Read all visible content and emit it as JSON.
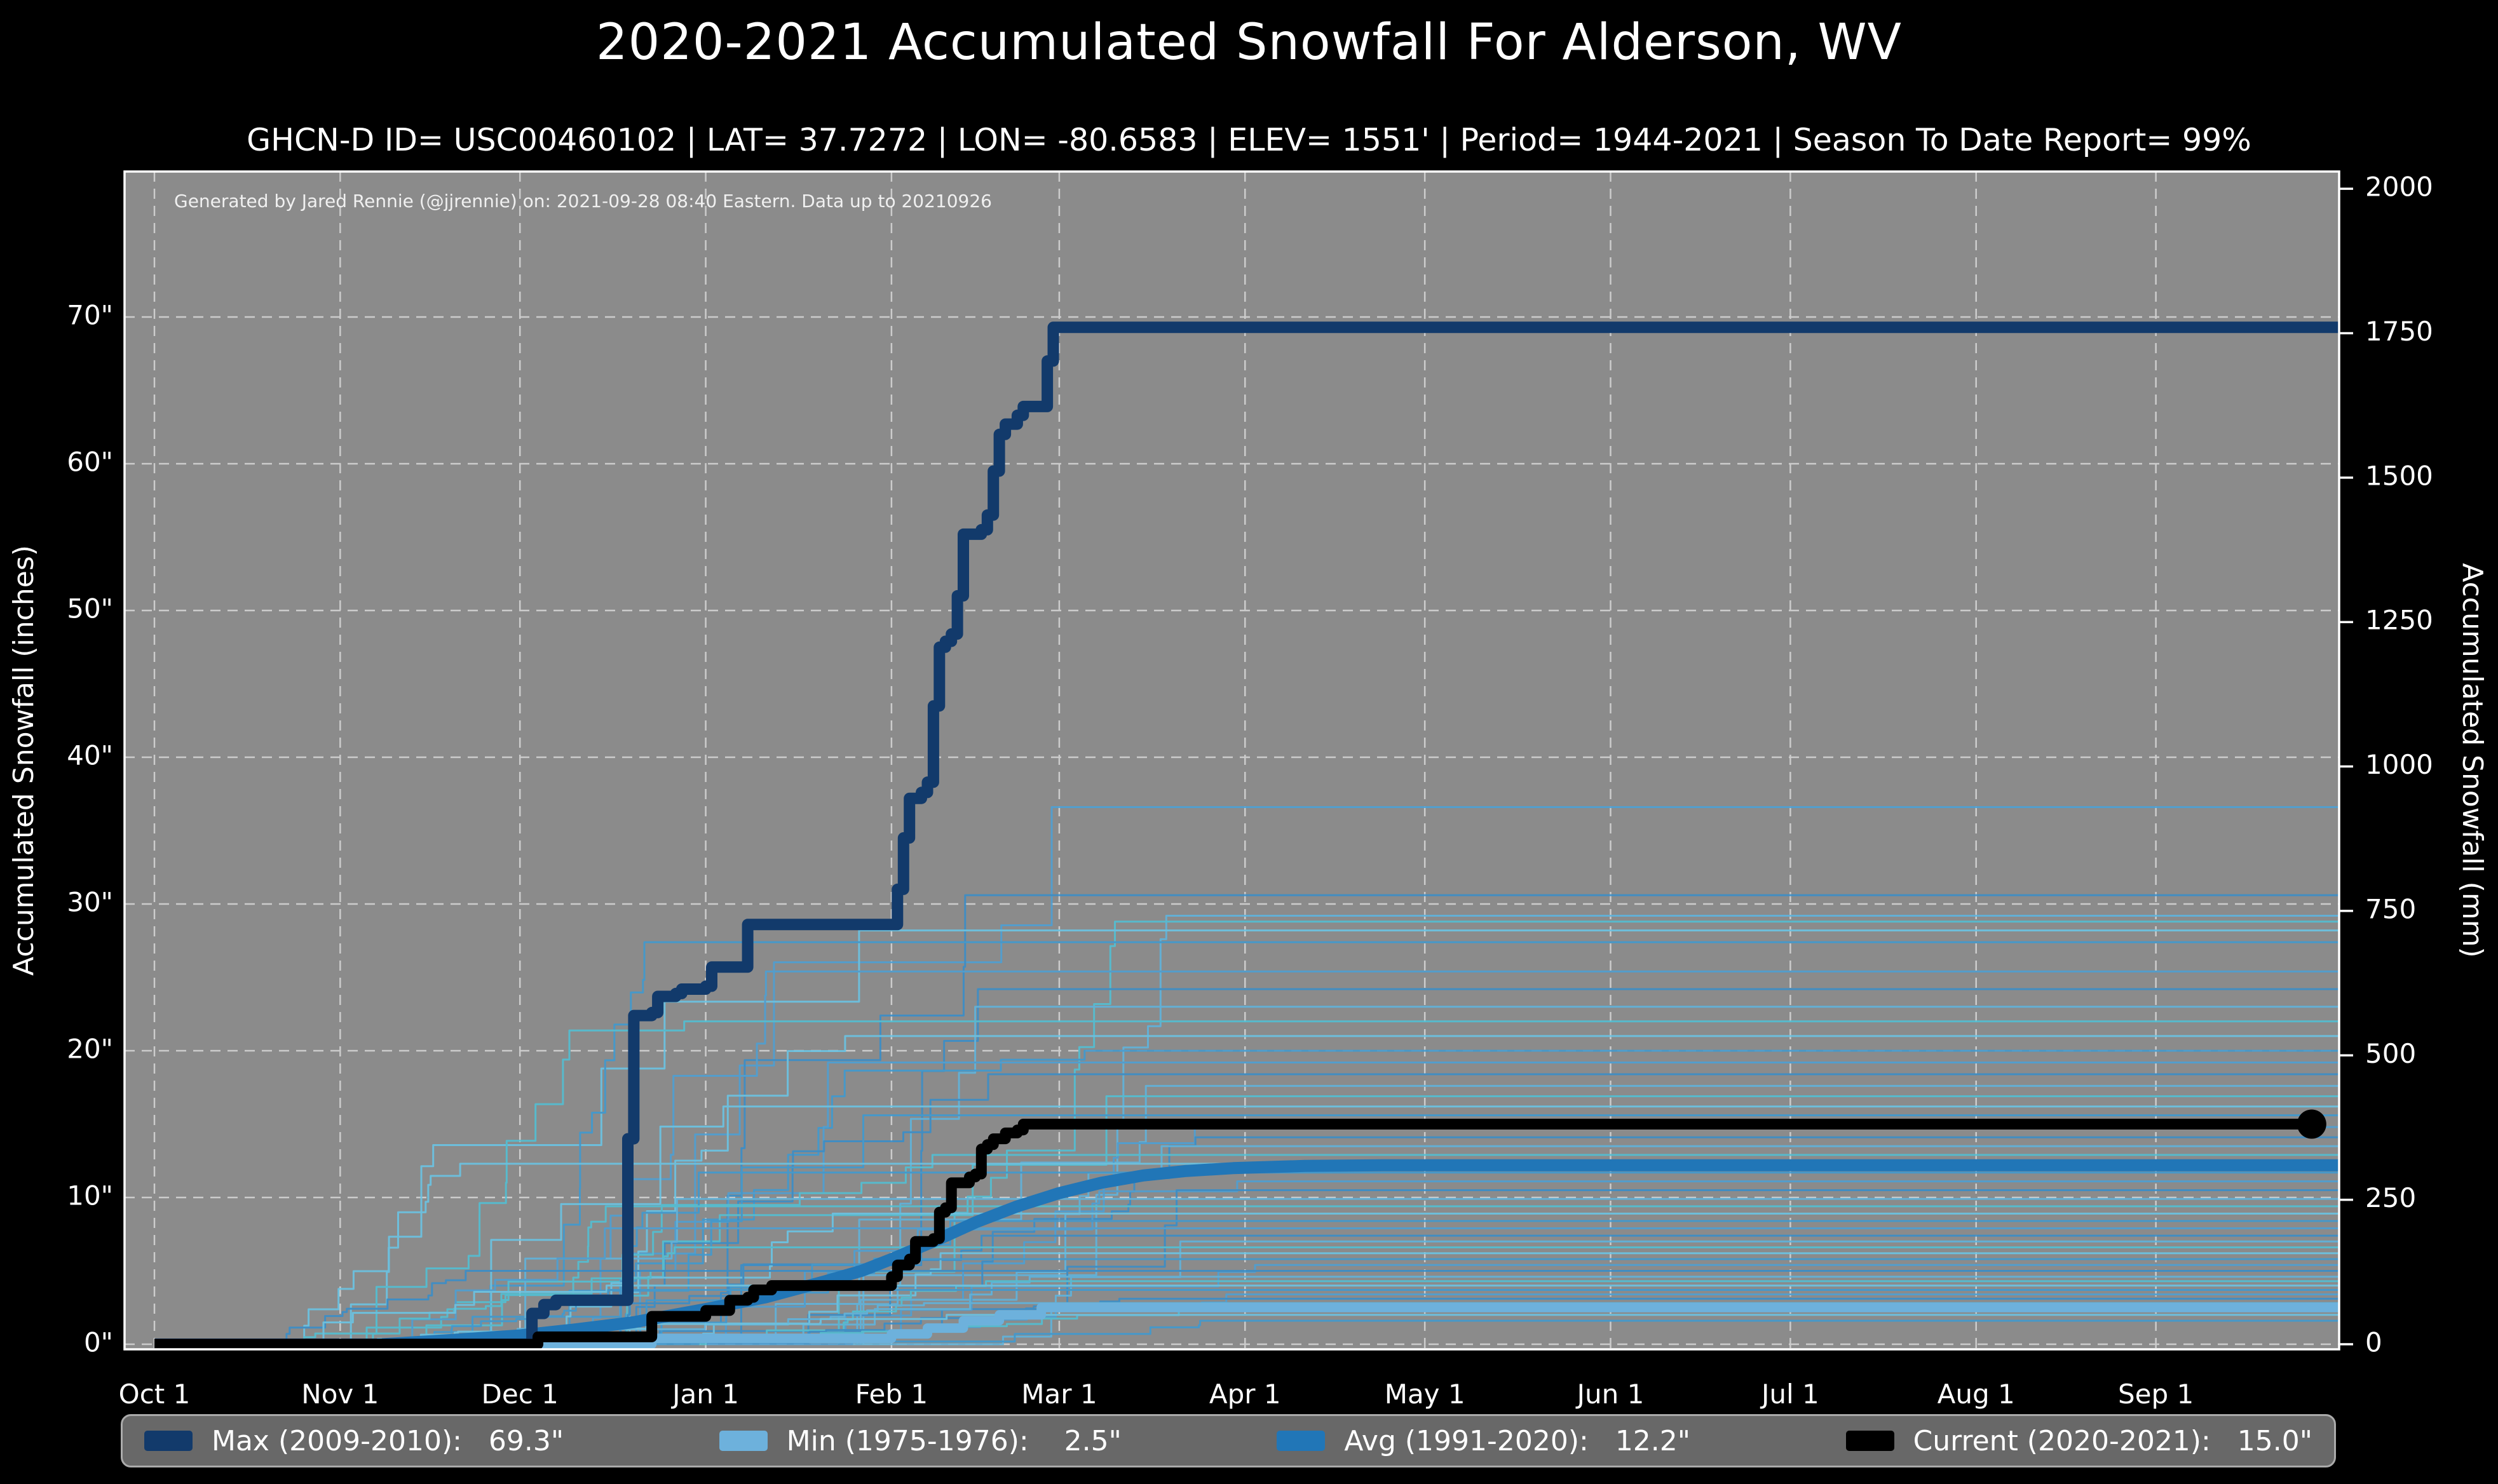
{
  "chart_data": {
    "type": "line",
    "title": "2020-2021 Accumulated Snowfall For Alderson, WV",
    "subtitle": "GHCN-D ID= USC00460102 | LAT= 37.7272 | LON= -80.6583 | ELEV= 1551' | Period= 1944-2021 | Season To Date Report= 99%",
    "annotation": "Generated by Jared Rennie (@jjrennie) on: 2021-09-28 08:40 Eastern. Data up to 20210926",
    "colors": {
      "figure_background": "#000000",
      "plot_background": "#8b8b8b",
      "gridline": "#cccccc",
      "spine": "#ffffff",
      "text": "#ffffff"
    },
    "x_axis": {
      "ticks": [
        {
          "label": "Oct 1",
          "day": 0
        },
        {
          "label": "Nov 1",
          "day": 31
        },
        {
          "label": "Dec 1",
          "day": 61
        },
        {
          "label": "Jan 1",
          "day": 92
        },
        {
          "label": "Feb 1",
          "day": 123
        },
        {
          "label": "Mar 1",
          "day": 151
        },
        {
          "label": "Apr 1",
          "day": 182
        },
        {
          "label": "May 1",
          "day": 212
        },
        {
          "label": "Jun 1",
          "day": 243
        },
        {
          "label": "Jul 1",
          "day": 273
        },
        {
          "label": "Aug 1",
          "day": 304
        },
        {
          "label": "Sep 1",
          "day": 334
        }
      ]
    },
    "y_left": {
      "label": "Accumulated Snowfall (inches)",
      "ticks": [
        {
          "v": 0,
          "label": "0\""
        },
        {
          "v": 10,
          "label": "10\""
        },
        {
          "v": 20,
          "label": "20\""
        },
        {
          "v": 30,
          "label": "30\""
        },
        {
          "v": 40,
          "label": "40\""
        },
        {
          "v": 50,
          "label": "50\""
        },
        {
          "v": 60,
          "label": "60\""
        },
        {
          "v": 70,
          "label": "70\""
        }
      ],
      "range": [
        0,
        80
      ]
    },
    "y_right": {
      "label": "Accumulated Snowfall (mm)",
      "ticks": [
        {
          "mm": 0,
          "label": "0"
        },
        {
          "mm": 250,
          "label": "250"
        },
        {
          "mm": 500,
          "label": "500"
        },
        {
          "mm": 750,
          "label": "750"
        },
        {
          "mm": 1000,
          "label": "1000"
        },
        {
          "mm": 1250,
          "label": "1250"
        },
        {
          "mm": 1500,
          "label": "1500"
        },
        {
          "mm": 1750,
          "label": "1750"
        },
        {
          "mm": 2000,
          "label": "2000"
        }
      ]
    },
    "series": [
      {
        "id": "min",
        "name": "Min (1975-1976)",
        "final_value": 2.5,
        "color": "#6db1dc",
        "width": 15,
        "mode": "step",
        "end_marker": false,
        "points": [
          [
            0,
            0
          ],
          [
            82,
            0
          ],
          [
            83,
            0.4
          ],
          [
            122,
            0.4
          ],
          [
            123,
            0.7
          ],
          [
            128,
            0.7
          ],
          [
            129,
            1.1
          ],
          [
            134,
            1.1
          ],
          [
            135,
            1.6
          ],
          [
            140,
            1.6
          ],
          [
            141,
            2.0
          ],
          [
            147,
            2.0
          ],
          [
            148,
            2.5
          ],
          [
            365,
            2.5
          ]
        ]
      },
      {
        "id": "avg",
        "name": "Avg (1991-2020)",
        "final_value": 12.2,
        "color": "#2176b7",
        "width": 19,
        "mode": "linear",
        "end_marker": false,
        "points": [
          [
            38,
            0
          ],
          [
            50,
            0.3
          ],
          [
            61,
            0.6
          ],
          [
            70,
            1.0
          ],
          [
            80,
            1.5
          ],
          [
            92,
            2.4
          ],
          [
            102,
            3.2
          ],
          [
            112,
            4.3
          ],
          [
            118,
            5.0
          ],
          [
            123,
            5.8
          ],
          [
            130,
            7.0
          ],
          [
            137,
            8.3
          ],
          [
            144,
            9.4
          ],
          [
            151,
            10.3
          ],
          [
            158,
            11.0
          ],
          [
            165,
            11.5
          ],
          [
            172,
            11.8
          ],
          [
            180,
            12.0
          ],
          [
            192,
            12.15
          ],
          [
            205,
            12.2
          ],
          [
            365,
            12.2
          ]
        ]
      },
      {
        "id": "max",
        "name": "Max (2009-2010)",
        "final_value": 69.3,
        "color": "#123a6b",
        "width": 18,
        "mode": "step",
        "end_marker": false,
        "points": [
          [
            0,
            0
          ],
          [
            62,
            0
          ],
          [
            63,
            2.1
          ],
          [
            65,
            2.7
          ],
          [
            67,
            3.0
          ],
          [
            78,
            3.0
          ],
          [
            79,
            14.0
          ],
          [
            80,
            22.4
          ],
          [
            83,
            22.6
          ],
          [
            84,
            23.7
          ],
          [
            87,
            23.9
          ],
          [
            88,
            24.2
          ],
          [
            92,
            24.4
          ],
          [
            93,
            25.7
          ],
          [
            98,
            25.7
          ],
          [
            99,
            28.6
          ],
          [
            122,
            28.6
          ],
          [
            124,
            31.0
          ],
          [
            125,
            34.5
          ],
          [
            126,
            37.2
          ],
          [
            128,
            37.6
          ],
          [
            129,
            38.3
          ],
          [
            130,
            43.5
          ],
          [
            131,
            47.5
          ],
          [
            132,
            47.9
          ],
          [
            133,
            48.4
          ],
          [
            134,
            51.0
          ],
          [
            135,
            55.2
          ],
          [
            138,
            55.5
          ],
          [
            139,
            56.5
          ],
          [
            140,
            59.5
          ],
          [
            141,
            62.0
          ],
          [
            142,
            62.7
          ],
          [
            144,
            63.3
          ],
          [
            145,
            63.9
          ],
          [
            148,
            63.9
          ],
          [
            149,
            67.0
          ],
          [
            150,
            69.3
          ],
          [
            365,
            69.3
          ]
        ]
      },
      {
        "id": "current",
        "name": "Current (2020-2021)",
        "final_value": 15.0,
        "color": "#000000",
        "width": 17,
        "mode": "step",
        "end_marker": true,
        "end_marker_day": 360,
        "end_marker_radius": 23,
        "points": [
          [
            0,
            0
          ],
          [
            63,
            0
          ],
          [
            64,
            0.5
          ],
          [
            82,
            0.5
          ],
          [
            83,
            1.9
          ],
          [
            91,
            1.9
          ],
          [
            92,
            2.3
          ],
          [
            95,
            2.3
          ],
          [
            96,
            3.0
          ],
          [
            99,
            3.2
          ],
          [
            100,
            3.7
          ],
          [
            103,
            4.0
          ],
          [
            122,
            4.0
          ],
          [
            123,
            4.6
          ],
          [
            124,
            5.4
          ],
          [
            126,
            5.8
          ],
          [
            127,
            7.0
          ],
          [
            130,
            7.2
          ],
          [
            131,
            9.0
          ],
          [
            132,
            9.3
          ],
          [
            133,
            11.0
          ],
          [
            136,
            11.4
          ],
          [
            137,
            11.6
          ],
          [
            138,
            13.3
          ],
          [
            139,
            13.6
          ],
          [
            140,
            14.0
          ],
          [
            142,
            14.4
          ],
          [
            144,
            14.6
          ],
          [
            145,
            15.0
          ],
          [
            360,
            15.0
          ]
        ]
      }
    ],
    "background_series": {
      "description": "individual seasons 1944-2021",
      "seed": 20210928,
      "width": 3,
      "opacity": 0.9,
      "palette": [
        "#4da0d4",
        "#3a8ec9",
        "#5fb4dc",
        "#52c0d4",
        "#6ac4e4",
        "#3f9ad0"
      ],
      "final_totals": [
        36.6,
        30.6,
        29.2,
        28.8,
        28.2,
        27.4,
        25.4,
        24.2,
        23.0,
        22.0,
        21.0,
        20.0,
        19.2,
        18.4,
        17.6,
        16.9,
        16.2,
        15.6,
        14.8,
        14.1,
        13.5,
        12.9,
        12.3,
        11.7,
        11.1,
        10.5,
        9.9,
        9.4,
        8.9,
        8.4,
        7.9,
        7.4,
        7.0,
        6.6,
        6.2,
        5.8,
        5.4,
        5.0,
        4.6,
        4.3,
        4.0,
        3.7,
        3.4,
        3.1,
        2.8,
        2.4,
        2.0,
        1.6
      ]
    }
  },
  "legend": {
    "entries": [
      {
        "label": "Max (2009-2010):",
        "value": " 69.3\"",
        "color": "#123a6b"
      },
      {
        "label": "Min (1975-1976):",
        "value": "  2.5\"",
        "color": "#6db1dc"
      },
      {
        "label": "Avg (1991-2020):",
        "value": " 12.2\"",
        "color": "#2176b7"
      },
      {
        "label": "Current (2020-2021):",
        "value": " 15.0\"",
        "color": "#000000"
      }
    ]
  }
}
